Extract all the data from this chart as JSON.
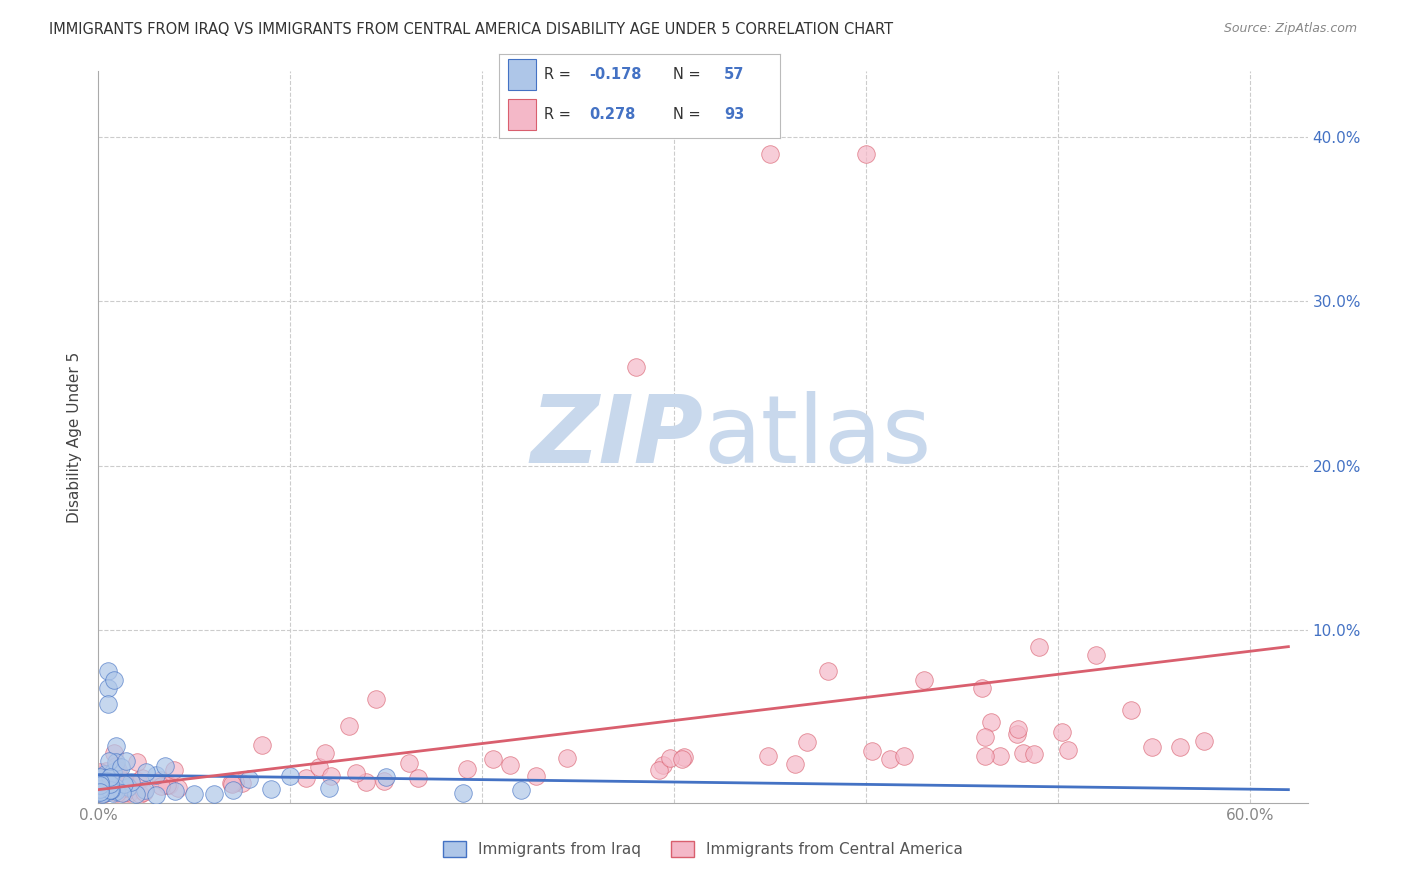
{
  "title": "IMMIGRANTS FROM IRAQ VS IMMIGRANTS FROM CENTRAL AMERICA DISABILITY AGE UNDER 5 CORRELATION CHART",
  "source": "Source: ZipAtlas.com",
  "ylabel_label": "Disability Age Under 5",
  "xlim": [
    0.0,
    0.63
  ],
  "ylim": [
    -0.005,
    0.44
  ],
  "legend_iraq_R": "-0.178",
  "legend_iraq_N": "57",
  "legend_central_R": "0.278",
  "legend_central_N": "93",
  "legend_label_iraq": "Immigrants from Iraq",
  "legend_label_central": "Immigrants from Central America",
  "color_iraq": "#aec6e8",
  "color_iraq_line": "#4472c4",
  "color_central": "#f4b8c8",
  "color_central_line": "#d95f6e",
  "color_r_values": "#4472c4",
  "background_color": "#ffffff",
  "watermark_zip_color": "#c8d8ec",
  "watermark_atlas_color": "#c8d8ec",
  "grid_color": "#cccccc",
  "tick_color_right": "#4472c4",
  "tick_color_x": "#888888"
}
